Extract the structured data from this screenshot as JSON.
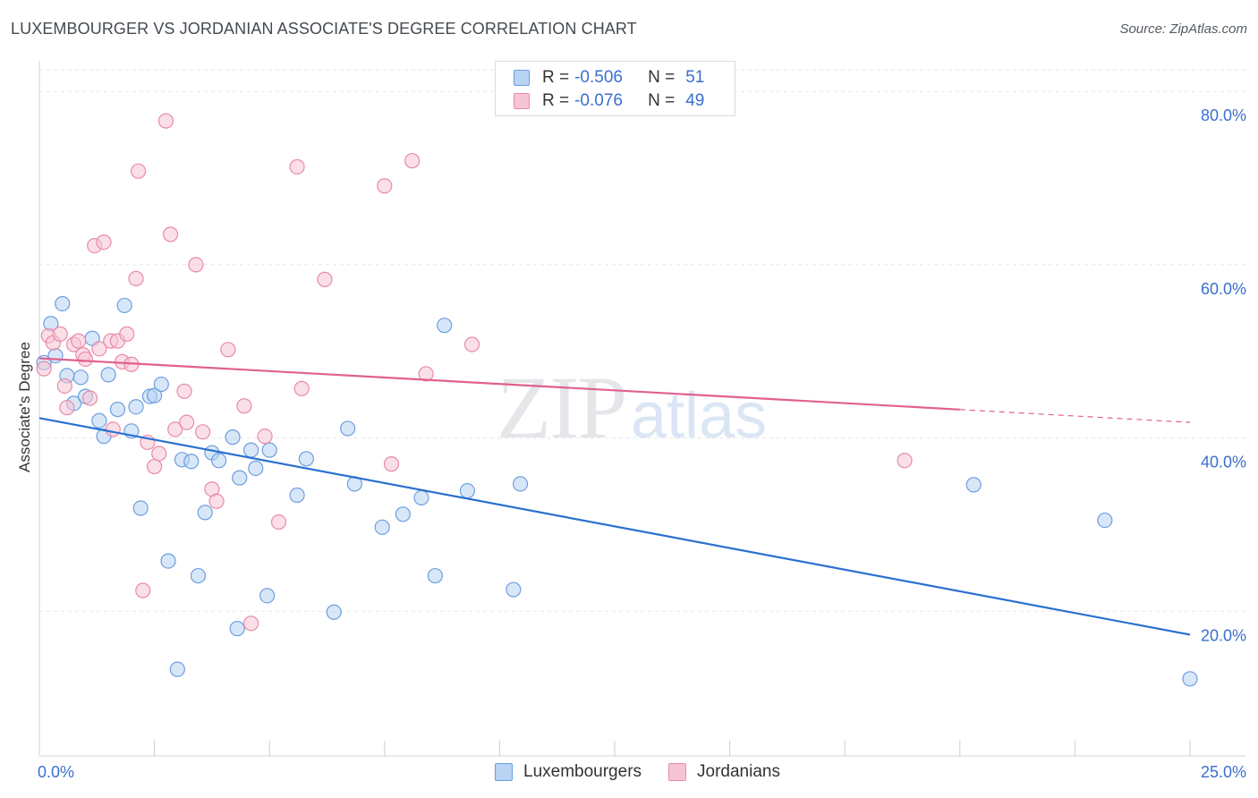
{
  "header": {
    "title": "LUXEMBOURGER VS JORDANIAN ASSOCIATE'S DEGREE CORRELATION CHART",
    "source": "Source: ZipAtlas.com"
  },
  "watermark": {
    "zip": "ZIP",
    "atlas": "atlas"
  },
  "colors": {
    "blue_fill": "#b8d3f3",
    "blue_stroke": "#6d9ee0",
    "blue_line": "#2a70d0",
    "pink_fill": "#f7c4d4",
    "pink_stroke": "#e88aa8",
    "pink_line": "#e06090",
    "axis_text": "#3a6fd0",
    "grid": "#e3e6ea"
  },
  "legend": {
    "rows": [
      {
        "r_label": "R = ",
        "r_value": "-0.506",
        "n_label": "N = ",
        "n_value": "51"
      },
      {
        "r_label": "R = ",
        "r_value": "-0.076",
        "n_label": "N = ",
        "n_value": "49"
      }
    ]
  },
  "chart_data": {
    "type": "scatter",
    "title": "LUXEMBOURGER VS JORDANIAN ASSOCIATE'S DEGREE CORRELATION CHART",
    "ylabel": "Associate's Degree",
    "xlabel": "",
    "xlim": [
      0,
      25
    ],
    "ylim": [
      3.3,
      82.5
    ],
    "x_tick_labels": [
      "0.0%",
      "25.0%"
    ],
    "y_ticks": [
      20,
      40,
      60,
      80
    ],
    "y_tick_labels": [
      "20.0%",
      "40.0%",
      "60.0%",
      "80.0%"
    ],
    "grid": true,
    "legend_position": "bottom-center",
    "series": [
      {
        "name": "Luxembourgers",
        "color": "blue",
        "trend": {
          "x": [
            0,
            25
          ],
          "y": [
            42.3,
            17.3
          ],
          "dashed_from": null
        },
        "points": [
          [
            0.1,
            48.7
          ],
          [
            0.25,
            53.2
          ],
          [
            0.35,
            49.5
          ],
          [
            0.5,
            55.5
          ],
          [
            0.6,
            47.2
          ],
          [
            0.75,
            44.0
          ],
          [
            0.9,
            47.0
          ],
          [
            1.0,
            44.8
          ],
          [
            1.15,
            51.5
          ],
          [
            1.3,
            42.0
          ],
          [
            1.4,
            40.2
          ],
          [
            1.5,
            47.3
          ],
          [
            1.7,
            43.3
          ],
          [
            1.85,
            55.3
          ],
          [
            2.0,
            40.8
          ],
          [
            2.1,
            43.6
          ],
          [
            2.2,
            31.9
          ],
          [
            2.4,
            44.8
          ],
          [
            2.5,
            44.9
          ],
          [
            2.65,
            46.2
          ],
          [
            2.8,
            25.8
          ],
          [
            3.0,
            13.3
          ],
          [
            3.1,
            37.5
          ],
          [
            3.3,
            37.3
          ],
          [
            3.45,
            24.1
          ],
          [
            3.6,
            31.4
          ],
          [
            3.75,
            38.3
          ],
          [
            3.9,
            37.4
          ],
          [
            4.2,
            40.1
          ],
          [
            4.3,
            18.0
          ],
          [
            4.35,
            35.4
          ],
          [
            4.6,
            38.6
          ],
          [
            4.7,
            36.5
          ],
          [
            4.95,
            21.8
          ],
          [
            5.0,
            38.6
          ],
          [
            5.6,
            33.4
          ],
          [
            5.8,
            37.6
          ],
          [
            6.4,
            19.9
          ],
          [
            6.7,
            41.1
          ],
          [
            6.85,
            34.7
          ],
          [
            7.45,
            29.7
          ],
          [
            7.9,
            31.2
          ],
          [
            8.3,
            33.1
          ],
          [
            8.6,
            24.1
          ],
          [
            8.8,
            53.0
          ],
          [
            9.3,
            33.9
          ],
          [
            10.3,
            22.5
          ],
          [
            10.45,
            34.7
          ],
          [
            20.3,
            34.6
          ],
          [
            23.15,
            30.5
          ],
          [
            25.0,
            12.2
          ]
        ]
      },
      {
        "name": "Jordanians",
        "color": "pink",
        "trend": {
          "x": [
            0,
            25
          ],
          "y": [
            49.2,
            41.8
          ],
          "dashed_from": 20.0
        },
        "points": [
          [
            0.1,
            48.0
          ],
          [
            0.2,
            51.8
          ],
          [
            0.3,
            51.0
          ],
          [
            0.45,
            52.0
          ],
          [
            0.55,
            46.0
          ],
          [
            0.6,
            43.5
          ],
          [
            0.75,
            50.8
          ],
          [
            0.85,
            51.2
          ],
          [
            0.95,
            49.6
          ],
          [
            1.0,
            49.1
          ],
          [
            1.1,
            44.6
          ],
          [
            1.2,
            62.2
          ],
          [
            1.3,
            50.3
          ],
          [
            1.4,
            62.6
          ],
          [
            1.55,
            51.2
          ],
          [
            1.6,
            41.0
          ],
          [
            1.7,
            51.2
          ],
          [
            1.8,
            48.8
          ],
          [
            1.9,
            52.0
          ],
          [
            2.0,
            48.5
          ],
          [
            2.1,
            58.4
          ],
          [
            2.15,
            70.8
          ],
          [
            2.25,
            22.4
          ],
          [
            2.35,
            39.5
          ],
          [
            2.5,
            36.7
          ],
          [
            2.6,
            38.2
          ],
          [
            2.75,
            76.6
          ],
          [
            2.85,
            63.5
          ],
          [
            2.95,
            41.0
          ],
          [
            3.15,
            45.4
          ],
          [
            3.2,
            41.8
          ],
          [
            3.4,
            60.0
          ],
          [
            3.55,
            40.7
          ],
          [
            3.75,
            34.1
          ],
          [
            3.85,
            32.7
          ],
          [
            4.1,
            50.2
          ],
          [
            4.45,
            43.7
          ],
          [
            4.6,
            18.6
          ],
          [
            4.9,
            40.2
          ],
          [
            5.2,
            30.3
          ],
          [
            5.6,
            71.3
          ],
          [
            5.7,
            45.7
          ],
          [
            6.2,
            58.3
          ],
          [
            7.5,
            69.1
          ],
          [
            7.65,
            37.0
          ],
          [
            8.1,
            72.0
          ],
          [
            8.4,
            47.4
          ],
          [
            9.4,
            50.8
          ],
          [
            18.8,
            37.4
          ]
        ]
      }
    ]
  },
  "bottom_legend": {
    "items": [
      {
        "label": "Luxembourgers"
      },
      {
        "label": "Jordanians"
      }
    ]
  }
}
